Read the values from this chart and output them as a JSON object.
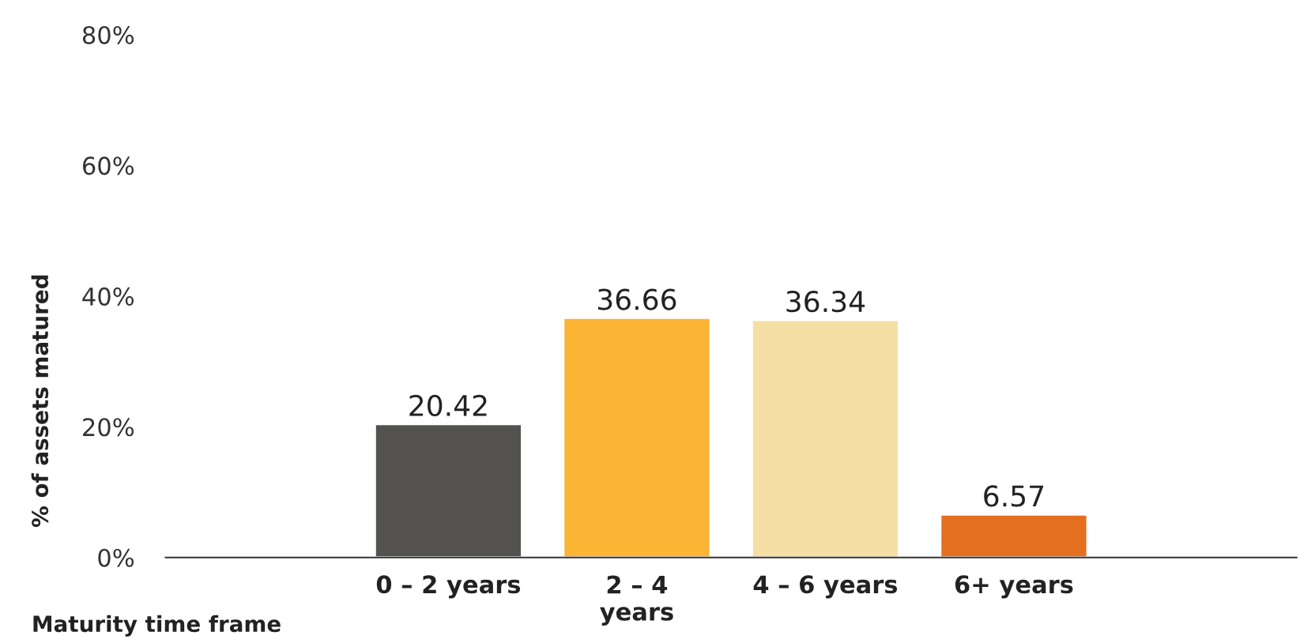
{
  "chart_data": {
    "type": "bar",
    "xlabel": "Maturity time frame",
    "ylabel": "% of assets matured",
    "categories": [
      null,
      "0 – 2 years",
      "2 – 4\nyears",
      "4 – 6 years",
      "6+ years",
      null
    ],
    "values": [
      null,
      20.42,
      36.66,
      36.34,
      6.57,
      null
    ],
    "colors": [
      "#54524f",
      "#54524f",
      "#fbb434",
      "#f5dfa5",
      "#e36f1f",
      "#e36f1f"
    ],
    "ylim": [
      0,
      80
    ],
    "yticks": [
      {
        "value": 0,
        "label": "0%"
      },
      {
        "value": 20,
        "label": "20%"
      },
      {
        "value": 40,
        "label": "40%"
      },
      {
        "value": 60,
        "label": "60%"
      },
      {
        "value": 80,
        "label": "80%"
      }
    ],
    "data_labels": true,
    "grid": false,
    "legend": false
  }
}
